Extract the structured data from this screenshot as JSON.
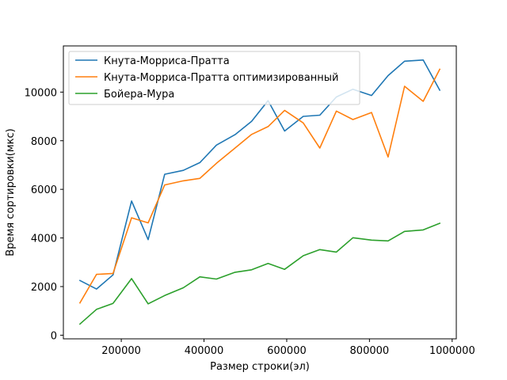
{
  "chart_data": {
    "type": "line",
    "title": "",
    "xlabel": "Размер строки(эл)",
    "ylabel": "Время сортировки(мкс)",
    "xlim": [
      60000,
      1010000
    ],
    "ylim": [
      -150,
      11900
    ],
    "xticks": [
      200000,
      400000,
      600000,
      800000,
      1000000
    ],
    "xtick_labels": [
      "200000",
      "400000",
      "600000",
      "800000",
      "1000000"
    ],
    "yticks": [
      0,
      2000,
      4000,
      6000,
      8000,
      10000
    ],
    "ytick_labels": [
      "0",
      "2000",
      "4000",
      "6000",
      "8000",
      "10000"
    ],
    "grid": false,
    "legend_position": "upper-left",
    "x": [
      100000,
      140000,
      180000,
      225000,
      265000,
      305000,
      350000,
      390000,
      430000,
      475000,
      515000,
      555000,
      595000,
      640000,
      680000,
      720000,
      760000,
      805000,
      845000,
      885000,
      930000,
      970000
    ],
    "series": [
      {
        "name": "Кнута-Морриса-Пратта",
        "color": "#1f77b4",
        "values": [
          2250,
          1900,
          2480,
          5520,
          3930,
          6620,
          6780,
          7100,
          7820,
          8250,
          8800,
          9650,
          8400,
          9000,
          9050,
          9800,
          10120,
          9860,
          10680,
          11270,
          11320,
          10080
        ]
      },
      {
        "name": "Кнута-Морриса-Пратта оптимизированный",
        "color": "#ff7f0e",
        "values": [
          1330,
          2500,
          2540,
          4830,
          4620,
          6180,
          6350,
          6450,
          7070,
          7700,
          8260,
          8580,
          9250,
          8730,
          7700,
          9220,
          8870,
          9160,
          7330,
          10240,
          9620,
          10940
        ]
      },
      {
        "name": "Бойера-Мура",
        "color": "#2ca02c",
        "values": [
          460,
          1060,
          1310,
          2330,
          1290,
          1630,
          1950,
          2400,
          2310,
          2590,
          2690,
          2950,
          2710,
          3270,
          3520,
          3420,
          4010,
          3910,
          3880,
          4270,
          4330,
          4600
        ]
      }
    ]
  }
}
